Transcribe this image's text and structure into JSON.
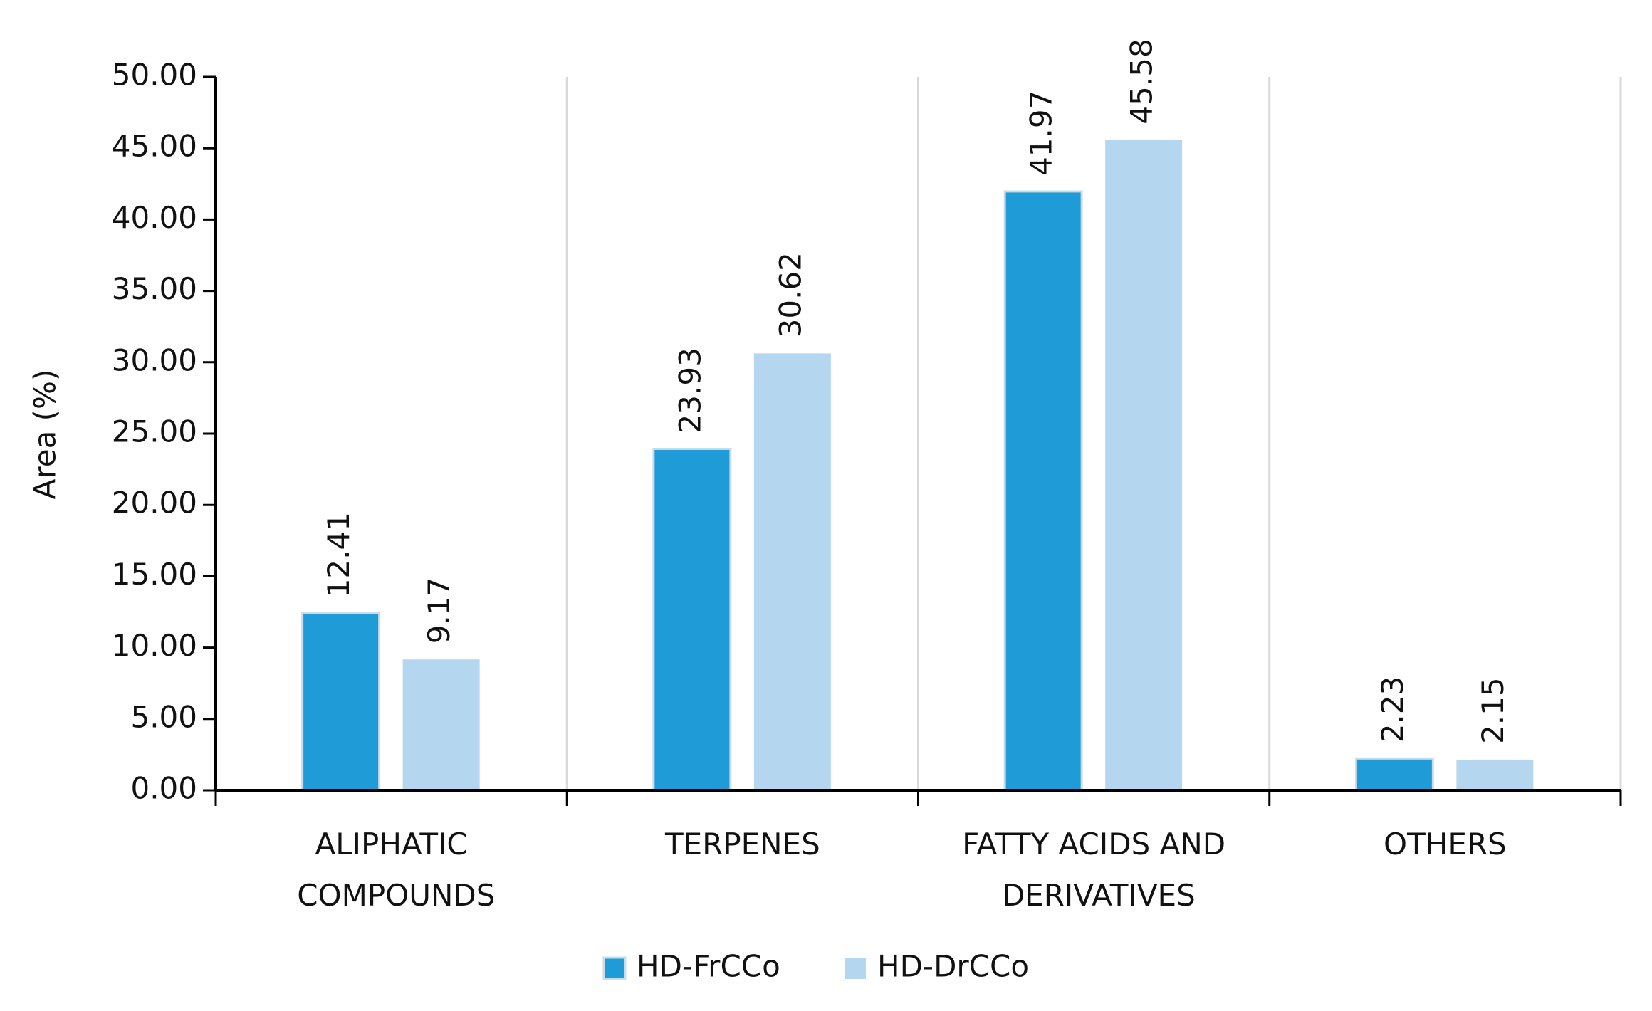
{
  "chart_data": {
    "type": "bar",
    "y_label": "Area (%)",
    "categories": [
      "ALIPHATIC COMPOUNDS",
      "TERPENES",
      "FATTY ACIDS AND DERIVATIVES",
      "OTHERS"
    ],
    "series": [
      {
        "name": "HD-FrCCo",
        "color": "#1f9bd7",
        "values": [
          12.41,
          23.93,
          41.97,
          2.23
        ]
      },
      {
        "name": "HD-DrCCo",
        "color": "#b4d7ef",
        "values": [
          9.17,
          30.62,
          45.58,
          2.15
        ]
      }
    ],
    "ylim": [
      0,
      50
    ],
    "yticks": [
      {
        "value": 0,
        "label": "0.00"
      },
      {
        "value": 5,
        "label": "5.00"
      },
      {
        "value": 10,
        "label": "10.00"
      },
      {
        "value": 15,
        "label": "15.00"
      },
      {
        "value": 20,
        "label": "20.00"
      },
      {
        "value": 25,
        "label": "25.00"
      },
      {
        "value": 30,
        "label": "30.00"
      },
      {
        "value": 35,
        "label": "35.00"
      },
      {
        "value": 40,
        "label": "40.00"
      },
      {
        "value": 45,
        "label": "45.00"
      },
      {
        "value": 50,
        "label": "50.00"
      }
    ],
    "grid": false,
    "legend": "bottom"
  }
}
